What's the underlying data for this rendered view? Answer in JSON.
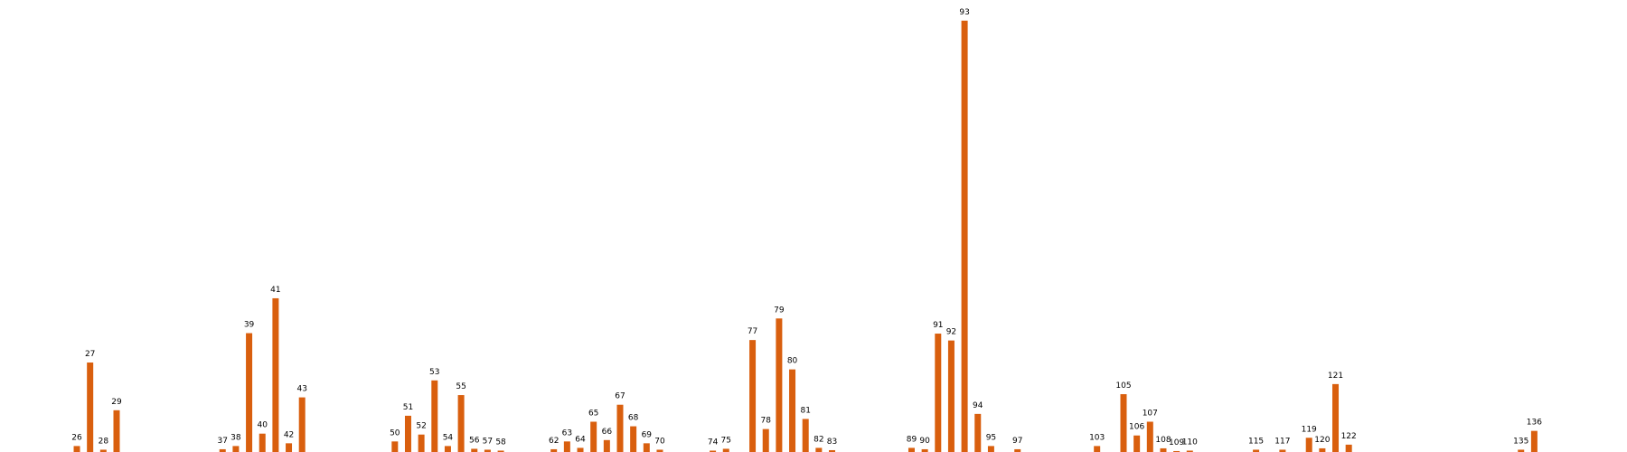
{
  "chart_data": {
    "type": "bar",
    "title": "",
    "xlabel": "",
    "ylabel": "",
    "grid": false,
    "legend": "none",
    "bar_color": "#d95f0e",
    "x": [
      26,
      27,
      28,
      29,
      37,
      38,
      39,
      40,
      41,
      42,
      43,
      50,
      51,
      52,
      53,
      54,
      55,
      56,
      57,
      58,
      62,
      63,
      64,
      65,
      66,
      67,
      68,
      69,
      70,
      74,
      75,
      77,
      78,
      79,
      80,
      81,
      82,
      83,
      89,
      90,
      91,
      92,
      93,
      94,
      95,
      97,
      103,
      105,
      106,
      107,
      108,
      109,
      110,
      115,
      117,
      119,
      120,
      121,
      122,
      135,
      136
    ],
    "labels": [
      "26",
      "27",
      "28",
      "29",
      "37",
      "38",
      "39",
      "40",
      "41",
      "42",
      "43",
      "50",
      "51",
      "52",
      "53",
      "54",
      "55",
      "56",
      "57",
      "58",
      "62",
      "63",
      "64",
      "65",
      "66",
      "67",
      "68",
      "69",
      "70",
      "74",
      "75",
      "77",
      "78",
      "79",
      "80",
      "81",
      "82",
      "83",
      "89",
      "90",
      "91",
      "92",
      "93",
      "94",
      "95",
      "97",
      "103",
      "105",
      "106",
      "107",
      "108",
      "109",
      "110",
      "115",
      "117",
      "119",
      "120",
      "121",
      "122",
      "135",
      "136"
    ],
    "values": [
      1.3,
      19.5,
      0.5,
      9.1,
      0.6,
      1.3,
      25.9,
      4.0,
      33.5,
      1.9,
      11.9,
      2.3,
      7.9,
      3.8,
      15.6,
      1.3,
      12.4,
      0.7,
      0.5,
      0.3,
      0.6,
      2.3,
      0.9,
      6.6,
      2.6,
      10.3,
      5.6,
      1.9,
      0.5,
      0.3,
      0.7,
      24.4,
      5.0,
      29.1,
      18.0,
      7.2,
      0.9,
      0.4,
      0.9,
      0.6,
      25.8,
      24.3,
      94.0,
      8.3,
      1.3,
      0.6,
      1.3,
      12.6,
      3.6,
      6.6,
      0.8,
      0.2,
      0.3,
      0.5,
      0.5,
      3.1,
      0.8,
      14.8,
      1.6,
      0.5,
      4.6
    ],
    "xlim": [
      20.2,
      143
    ],
    "ylim": [
      0,
      98.5
    ]
  }
}
